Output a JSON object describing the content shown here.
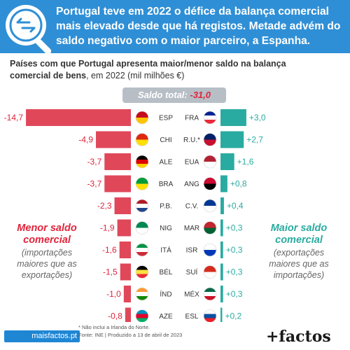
{
  "header": {
    "headline": "Portugal teve em 2022 o défice da balança comercial mais elevado desde que há registos. Metade advém do saldo negativo com o maior parceiro, a Espanha."
  },
  "subtitle": {
    "bold": "Países com que Portugal apresenta maior/menor saldo na balança comercial de bens",
    "rest": ", em 2022 (mil milhões €)"
  },
  "total": {
    "label": "Saldo total:",
    "value": "-31,0"
  },
  "legend_left": {
    "title": "Menor saldo comercial",
    "desc": "(importações maiores que as exportações)"
  },
  "legend_right": {
    "title": "Maior saldo comercial",
    "desc": "(exportações maiores que as importações)"
  },
  "footer": {
    "link": "maisfactos.pt",
    "note1": "* Não inclui a Irlanda do Norte.",
    "note2": "Fonte: INE | Produzido a 13 de abril de 2023",
    "brand": "+factos"
  },
  "colors": {
    "negative": "#e0485a",
    "positive": "#2aaba1",
    "header": "#2f8fd6"
  },
  "chart_data": {
    "type": "bar",
    "title": "",
    "negative": {
      "categories": [
        "ESP",
        "CHI",
        "ALE",
        "BRA",
        "P.B.",
        "NIG",
        "ITÁ",
        "BÉL",
        "ÍND",
        "AZE"
      ],
      "values": [
        -14.7,
        -4.9,
        -3.7,
        -3.7,
        -2.3,
        -1.9,
        -1.6,
        -1.5,
        -1.0,
        -0.8
      ],
      "labels": [
        "-14,7",
        "-4,9",
        "-3,7",
        "-3,7",
        "-2,3",
        "-1,9",
        "-1,6",
        "-1,5",
        "-1,0",
        "-0,8"
      ],
      "flag_icons": [
        "spain-flag-icon",
        "china-flag-icon",
        "germany-flag-icon",
        "brazil-flag-icon",
        "netherlands-flag-icon",
        "nigeria-flag-icon",
        "italy-flag-icon",
        "belgium-flag-icon",
        "india-flag-icon",
        "azerbaijan-flag-icon"
      ]
    },
    "positive": {
      "categories": [
        "FRA",
        "R.U.*",
        "EUA",
        "ANG",
        "C.V.",
        "MAR",
        "ISR",
        "SUÍ",
        "MÉX",
        "ESL"
      ],
      "values": [
        3.0,
        2.7,
        1.6,
        0.8,
        0.4,
        0.3,
        0.3,
        0.3,
        0.3,
        0.2
      ],
      "labels": [
        "+3,0",
        "+2,7",
        "+1,6",
        "+0,8",
        "+0,4",
        "+0,3",
        "+0,3",
        "+0,3",
        "+0,3",
        "+0,2"
      ],
      "flag_icons": [
        "france-flag-icon",
        "uk-flag-icon",
        "usa-flag-icon",
        "angola-flag-icon",
        "cape-verde-flag-icon",
        "morocco-flag-icon",
        "israel-flag-icon",
        "switzerland-flag-icon",
        "mexico-flag-icon",
        "slovakia-flag-icon"
      ]
    }
  }
}
